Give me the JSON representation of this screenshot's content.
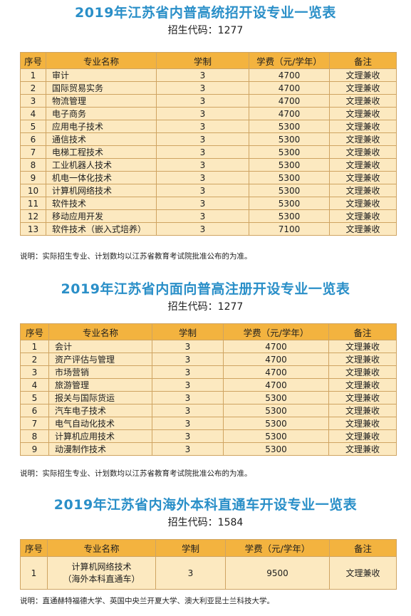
{
  "sections": [
    {
      "title": "2019年江苏省内普高统招开设专业一览表",
      "code": "招生代码：1277",
      "headers": [
        "序号",
        "专业名称",
        "学制",
        "学费（元/学年）",
        "备注"
      ],
      "rows": [
        [
          "1",
          "审计",
          "3",
          "4700",
          "文理兼收"
        ],
        [
          "2",
          "国际贸易实务",
          "3",
          "4700",
          "文理兼收"
        ],
        [
          "3",
          "物流管理",
          "3",
          "4700",
          "文理兼收"
        ],
        [
          "4",
          "电子商务",
          "3",
          "4700",
          "文理兼收"
        ],
        [
          "5",
          "应用电子技术",
          "3",
          "5300",
          "文理兼收"
        ],
        [
          "6",
          "通信技术",
          "3",
          "5300",
          "文理兼收"
        ],
        [
          "7",
          "电梯工程技术",
          "3",
          "5300",
          "文理兼收"
        ],
        [
          "8",
          "工业机器人技术",
          "3",
          "5300",
          "文理兼收"
        ],
        [
          "9",
          "机电一体化技术",
          "3",
          "5300",
          "文理兼收"
        ],
        [
          "10",
          "计算机网络技术",
          "3",
          "5300",
          "文理兼收"
        ],
        [
          "11",
          "软件技术",
          "3",
          "5300",
          "文理兼收"
        ],
        [
          "12",
          "移动应用开发",
          "3",
          "5300",
          "文理兼收"
        ],
        [
          "13",
          "软件技术（嵌入式培养）",
          "3",
          "7100",
          "文理兼收"
        ]
      ],
      "note": "说明：实际招生专业、计划数均以江苏省教育考试院批准公布的为准。"
    },
    {
      "title": "2019年江苏省内面向普高注册开设专业一览表",
      "code": "招生代码：1277",
      "headers": [
        "序号",
        "专业名称",
        "学制",
        "学费（元/学年）",
        "备注"
      ],
      "rows": [
        [
          "1",
          "会计",
          "3",
          "4700",
          "文理兼收"
        ],
        [
          "2",
          "资产评估与管理",
          "3",
          "4700",
          "文理兼收"
        ],
        [
          "3",
          "市场营销",
          "3",
          "4700",
          "文理兼收"
        ],
        [
          "4",
          "旅游管理",
          "3",
          "4700",
          "文理兼收"
        ],
        [
          "5",
          "报关与国际货运",
          "3",
          "5300",
          "文理兼收"
        ],
        [
          "6",
          "汽车电子技术",
          "3",
          "5300",
          "文理兼收"
        ],
        [
          "7",
          "电气自动化技术",
          "3",
          "5300",
          "文理兼收"
        ],
        [
          "8",
          "计算机应用技术",
          "3",
          "5300",
          "文理兼收"
        ],
        [
          "9",
          "动漫制作技术",
          "3",
          "5300",
          "文理兼收"
        ]
      ],
      "note": "说明：实际招生专业、计划数均以江苏省教育考试院批准公布的为准。"
    },
    {
      "title": "2019年江苏省内海外本科直通车开设专业一览表",
      "code": "招生代码：1584",
      "headers": [
        "序号",
        "专业名称",
        "学制",
        "学费（元/学年）",
        "备注"
      ],
      "row": {
        "no": "1",
        "name_line1": "计算机网络技术",
        "name_line2": "（海外本科直通车）",
        "years": "3",
        "fee": "9500",
        "remark": "文理兼收"
      },
      "note": "说明：直通赫特福德大学、英国中央兰开夏大学、澳大利亚昆士兰科技大学。"
    }
  ]
}
